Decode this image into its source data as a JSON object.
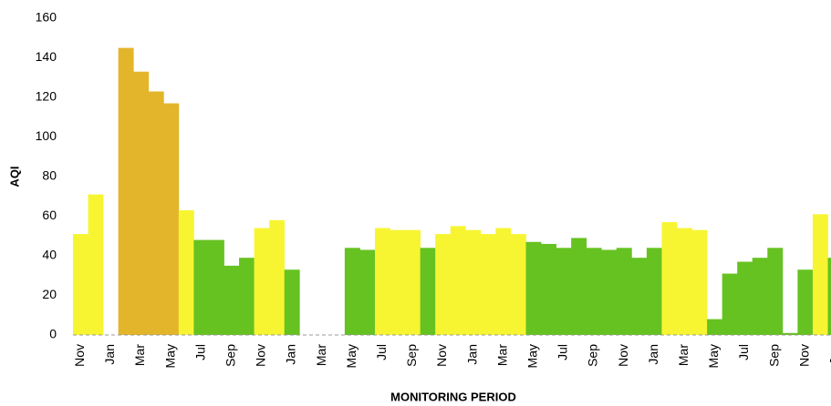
{
  "chart_data": {
    "type": "bar",
    "x_label": "MONITORING PERIOD",
    "y_label": "AQI",
    "categories": [
      "Nov",
      null,
      "Jan",
      null,
      "Mar",
      null,
      "May",
      null,
      "Jul",
      null,
      "Sep",
      null,
      "Nov",
      null,
      "Jan",
      null,
      "Mar",
      null,
      "May",
      null,
      "Jul",
      null,
      "Sep",
      null,
      "Nov",
      null,
      "Jan",
      null,
      "Mar",
      null,
      "May",
      null,
      "Jul",
      null,
      "Sep",
      null,
      "Nov",
      null,
      "Jan",
      null,
      "Mar",
      null,
      "May",
      null,
      "Jul",
      null,
      "Sep",
      null,
      "Nov",
      null,
      "Jan"
    ],
    "values": [
      51,
      71,
      null,
      145,
      133,
      123,
      117,
      63,
      48,
      48,
      35,
      39,
      54,
      58,
      33,
      null,
      null,
      null,
      44,
      43,
      54,
      53,
      53,
      44,
      51,
      55,
      53,
      51,
      54,
      51,
      47,
      46,
      44,
      49,
      44,
      43,
      44,
      39,
      44,
      57,
      54,
      53,
      8,
      31,
      37,
      39,
      44,
      1,
      33,
      61,
      39
    ],
    "colors": [
      "#f7f532",
      "#f7f532",
      "#f7f532",
      "#e3b52a",
      "#e3b52a",
      "#e3b52a",
      "#e3b52a",
      "#f7f532",
      "#66c221",
      "#66c221",
      "#66c221",
      "#66c221",
      "#f7f532",
      "#f7f532",
      "#66c221",
      "#66c221",
      "#66c221",
      "#66c221",
      "#66c221",
      "#66c221",
      "#f7f532",
      "#f7f532",
      "#f7f532",
      "#66c221",
      "#f7f532",
      "#f7f532",
      "#f7f532",
      "#f7f532",
      "#f7f532",
      "#f7f532",
      "#66c221",
      "#66c221",
      "#66c221",
      "#66c221",
      "#66c221",
      "#66c221",
      "#66c221",
      "#66c221",
      "#66c221",
      "#f7f532",
      "#f7f532",
      "#f7f532",
      "#66c221",
      "#66c221",
      "#66c221",
      "#66c221",
      "#66c221",
      "#66c221",
      "#66c221",
      "#f7f532",
      "#66c221"
    ],
    "ylim": [
      0,
      160
    ],
    "yticks": [
      0,
      20,
      40,
      60,
      80,
      100,
      120,
      140,
      160
    ],
    "grid": false
  }
}
